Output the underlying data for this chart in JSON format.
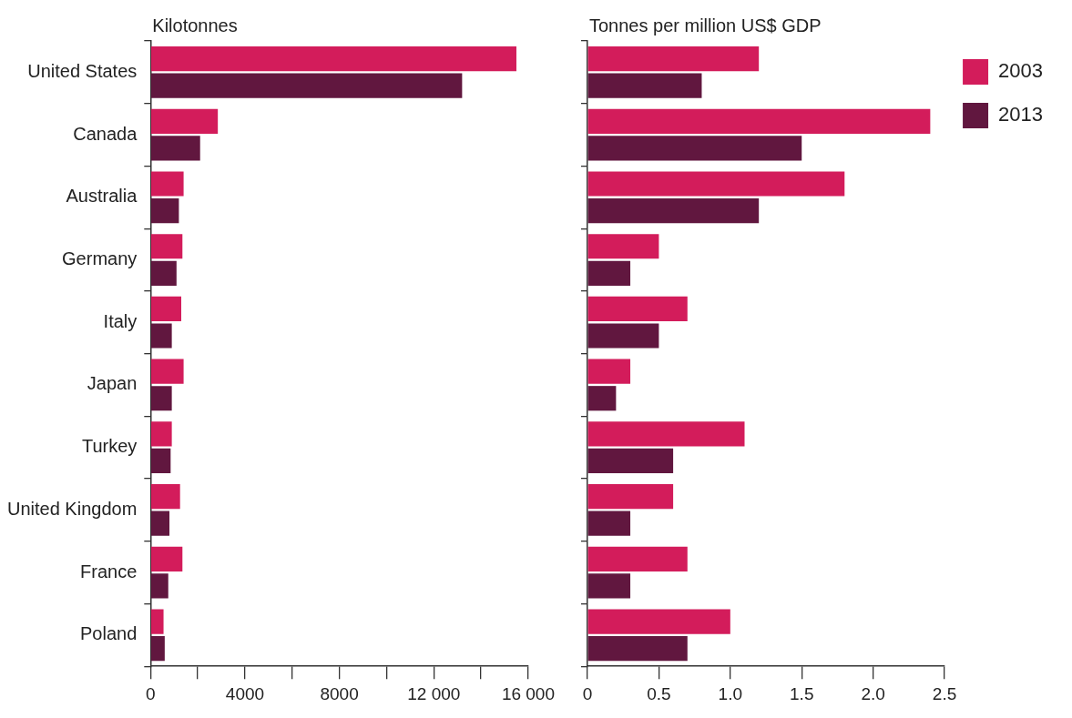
{
  "chart_data": [
    {
      "type": "bar",
      "orientation": "horizontal",
      "title": "Kilotonnes",
      "categories": [
        "United States",
        "Canada",
        "Australia",
        "Germany",
        "Italy",
        "Japan",
        "Turkey",
        "United Kingdom",
        "France",
        "Poland"
      ],
      "series": [
        {
          "color": "#d31c5b",
          "values": [
            15500,
            2850,
            1400,
            1350,
            1300,
            1400,
            900,
            1250,
            1350,
            550
          ]
        },
        {
          "color": "#61173f",
          "values": [
            13200,
            2100,
            1200,
            1100,
            900,
            900,
            850,
            800,
            750,
            600
          ]
        }
      ],
      "xlim": [
        0,
        16000
      ],
      "xticks": [
        0,
        {
          "value": 2000,
          "label": null
        },
        4000,
        {
          "value": 6000,
          "label": null
        },
        8000,
        {
          "value": 10000,
          "label": null
        },
        {
          "value": 12000,
          "label": "12 000"
        },
        {
          "value": 14000,
          "label": null
        },
        {
          "value": 16000,
          "label": "16 000"
        }
      ],
      "grid": false,
      "legend": false
    },
    {
      "type": "bar",
      "orientation": "horizontal",
      "title": "Tonnes per million US$ GDP",
      "categories": [
        null,
        null,
        null,
        null,
        null,
        null,
        null,
        null,
        null,
        null
      ],
      "series": [
        {
          "name": "2003",
          "color": "#d31c5b",
          "values": [
            1.2,
            2.4,
            1.8,
            0.5,
            0.7,
            0.3,
            1.1,
            0.6,
            0.7,
            1.0
          ]
        },
        {
          "name": "2013",
          "color": "#61173f",
          "values": [
            0.8,
            1.5,
            1.2,
            0.3,
            0.5,
            0.2,
            0.6,
            0.3,
            0.3,
            0.7
          ]
        }
      ],
      "xlim": [
        0,
        2.5
      ],
      "xticks": [
        0,
        0.5,
        {
          "value": 1,
          "label": "1.0"
        },
        1.5,
        {
          "value": 2,
          "label": "2.0"
        },
        2.5
      ],
      "grid": false,
      "legend": "top right",
      "tick_labels": "x"
    }
  ]
}
